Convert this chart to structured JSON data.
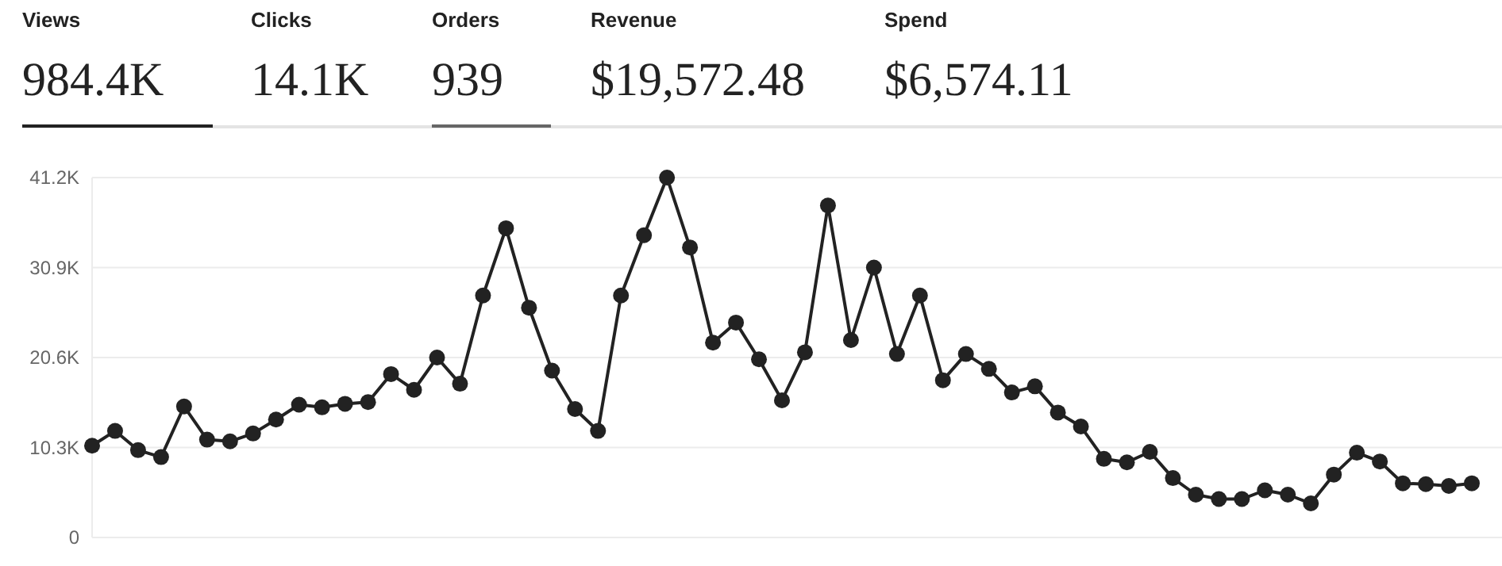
{
  "chart_data": {
    "type": "line",
    "annotations": [
      "Views",
      "984.4K",
      "Clicks",
      "14.1K",
      "Orders",
      "939",
      "Revenue",
      "$19,572.48",
      "Spend",
      "$6,574.11"
    ],
    "categories": [
      null,
      null,
      null,
      null,
      null,
      null,
      null,
      null,
      null,
      null,
      null,
      null,
      null,
      null,
      null,
      null,
      null,
      null,
      null,
      null,
      null,
      null,
      null,
      null,
      null,
      null,
      null,
      null,
      null,
      null,
      null,
      null,
      null,
      null,
      null,
      null,
      null,
      null,
      null,
      null,
      null,
      null,
      null,
      null,
      null,
      null,
      null,
      null,
      null,
      null,
      null,
      null,
      null,
      null,
      null,
      null,
      null,
      null,
      null,
      null,
      null
    ],
    "values": [
      10.5,
      12.2,
      10.0,
      9.2,
      15.0,
      11.2,
      11.0,
      11.9,
      13.5,
      15.2,
      14.9,
      15.3,
      15.5,
      18.7,
      16.9,
      20.6,
      17.6,
      27.7,
      35.4,
      26.3,
      19.1,
      14.7,
      12.2,
      27.7,
      34.6,
      41.2,
      33.2,
      22.3,
      24.6,
      20.4,
      15.7,
      21.2,
      38.0,
      22.6,
      30.9,
      21.0,
      27.7,
      18.0,
      21.0,
      19.3,
      16.6,
      17.3,
      14.3,
      12.7,
      9.0,
      8.6,
      9.8,
      6.8,
      4.9,
      4.4,
      4.4,
      5.4,
      4.9,
      3.9,
      7.2,
      9.7,
      8.7,
      6.2,
      6.1,
      5.9,
      6.2
    ],
    "color": "#222222",
    "ylim": [
      0,
      41.2
    ],
    "yticks": [
      0,
      {
        "value": 10.3,
        "label": "10.3K"
      },
      {
        "value": 20.6,
        "label": "20.6K"
      },
      {
        "value": 30.9,
        "label": "30.9K"
      },
      {
        "value": 41.2,
        "label": "41.2K"
      }
    ],
    "grid": "y",
    "marker": "circle",
    "line_style": "solid"
  }
}
